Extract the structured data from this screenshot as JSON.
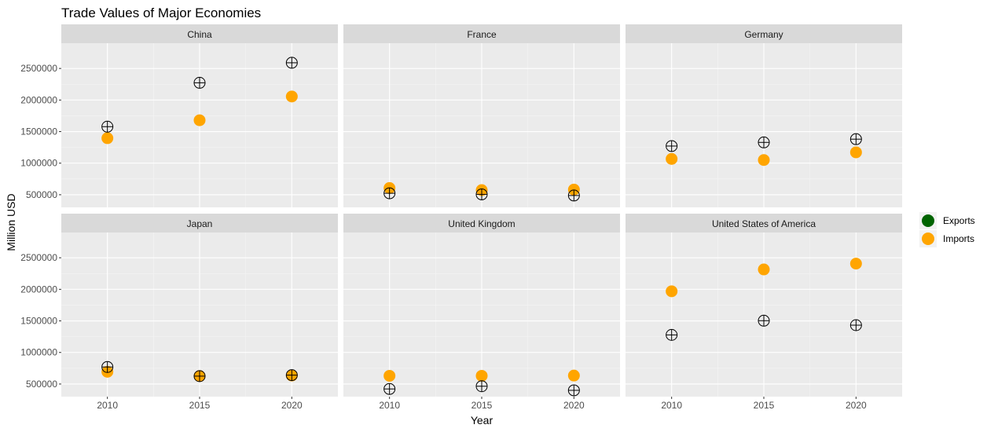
{
  "chart_data": {
    "type": "scatter",
    "title": "Trade Values of Major Economies",
    "xlabel": "Year",
    "ylabel": "Million USD",
    "x_ticks": [
      2010,
      2015,
      2020
    ],
    "y_ticks": [
      500000,
      1000000,
      1500000,
      2000000,
      2500000
    ],
    "ylim": [
      300000,
      2900000
    ],
    "xlim": [
      2007.5,
      2022.5
    ],
    "grid": true,
    "legend_position": "right",
    "series": [
      {
        "name": "Exports",
        "color": "#006400",
        "marker": "circle-plus"
      },
      {
        "name": "Imports",
        "color": "#FFA500",
        "marker": "filled-circle"
      }
    ],
    "panels": [
      {
        "name": "China",
        "x": [
          2010,
          2015,
          2020
        ],
        "exports": [
          1578000,
          2273000,
          2590000
        ],
        "imports": [
          1396000,
          1680000,
          2056000
        ]
      },
      {
        "name": "France",
        "x": [
          2010,
          2015,
          2020
        ],
        "exports": [
          523000,
          506000,
          488000
        ],
        "imports": [
          606000,
          573000,
          582000
        ]
      },
      {
        "name": "Germany",
        "x": [
          2010,
          2015,
          2020
        ],
        "exports": [
          1271000,
          1329000,
          1380000
        ],
        "imports": [
          1067000,
          1050000,
          1171000
        ]
      },
      {
        "name": "Japan",
        "x": [
          2010,
          2015,
          2020
        ],
        "exports": [
          770000,
          625000,
          641000
        ],
        "imports": [
          694000,
          626000,
          635000
        ]
      },
      {
        "name": "United Kingdom",
        "x": [
          2010,
          2015,
          2020
        ],
        "exports": [
          422000,
          465000,
          400000
        ],
        "imports": [
          630000,
          630000,
          634000
        ]
      },
      {
        "name": "United States of America",
        "x": [
          2010,
          2015,
          2020
        ],
        "exports": [
          1278000,
          1503000,
          1432000
        ],
        "imports": [
          1969000,
          2315000,
          2407000
        ]
      }
    ]
  }
}
